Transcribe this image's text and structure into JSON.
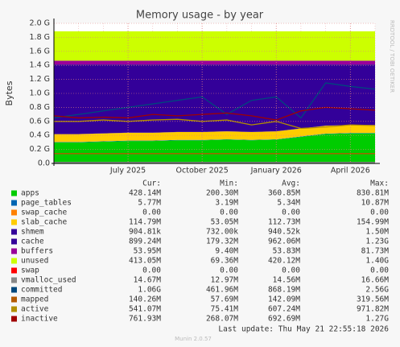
{
  "chart_data": {
    "type": "area",
    "title": "Memory usage - by year",
    "y_label": "Bytes",
    "watermark": "RRDTOOL / TOBI OETIKER",
    "x": [
      "2025-04",
      "2025-05",
      "2025-06",
      "2025-07",
      "2025-08",
      "2025-09",
      "2025-10",
      "2025-11",
      "2025-12",
      "2026-01",
      "2026-02",
      "2026-03",
      "2026-04",
      "2026-05"
    ],
    "xticks": [
      {
        "value": "2025-07",
        "label": "July 2025"
      },
      {
        "value": "2025-10",
        "label": "October 2025"
      },
      {
        "value": "2026-01",
        "label": "January 2026"
      },
      {
        "value": "2026-04",
        "label": "April 2026"
      }
    ],
    "ylim": [
      0,
      2000000000
    ],
    "yticks": [
      {
        "value": 0,
        "label": "0.0"
      },
      {
        "value": 200000000,
        "label": "0.2 G"
      },
      {
        "value": 400000000,
        "label": "0.4 G"
      },
      {
        "value": 600000000,
        "label": "0.6 G"
      },
      {
        "value": 800000000,
        "label": "0.8 G"
      },
      {
        "value": 1000000000,
        "label": "1.0 G"
      },
      {
        "value": 1200000000,
        "label": "1.2 G"
      },
      {
        "value": 1400000000,
        "label": "1.4 G"
      },
      {
        "value": 1600000000,
        "label": "1.6 G"
      },
      {
        "value": 1800000000,
        "label": "1.8 G"
      },
      {
        "value": 2000000000,
        "label": "2.0 G"
      }
    ],
    "grid": true,
    "stat_headers": [
      "Cur:",
      "Min:",
      "Avg:",
      "Max:"
    ],
    "series": [
      {
        "name": "apps",
        "color": "#00cc00",
        "stacked": true,
        "values": [
          300000000,
          300000000,
          310000000,
          320000000,
          320000000,
          330000000,
          330000000,
          340000000,
          330000000,
          340000000,
          380000000,
          420000000,
          430000000,
          430000000
        ],
        "stats": [
          "428.14M",
          "200.30M",
          "360.85M",
          "830.81M"
        ]
      },
      {
        "name": "page_tables",
        "color": "#0066b3",
        "stacked": true,
        "values": [
          5500000,
          5500000,
          5500000,
          5500000,
          5500000,
          5500000,
          5500000,
          5500000,
          5500000,
          5500000,
          5500000,
          5500000,
          5500000,
          5500000
        ],
        "stats": [
          "5.77M",
          "3.19M",
          "5.34M",
          "10.87M"
        ]
      },
      {
        "name": "swap_cache",
        "color": "#ff8000",
        "stacked": true,
        "values": [
          0,
          0,
          0,
          0,
          0,
          0,
          0,
          0,
          0,
          0,
          0,
          0,
          0,
          0
        ],
        "stats": [
          "0.00",
          "0.00",
          "0.00",
          "0.00"
        ]
      },
      {
        "name": "slab_cache",
        "color": "#ffcc00",
        "stacked": true,
        "values": [
          113000000,
          113000000,
          113000000,
          113000000,
          113000000,
          113000000,
          113000000,
          113000000,
          113000000,
          113000000,
          113000000,
          113000000,
          113000000,
          113000000
        ],
        "stats": [
          "114.79M",
          "53.05M",
          "112.73M",
          "154.99M"
        ]
      },
      {
        "name": "shmem",
        "color": "#330099",
        "stacked": true,
        "values": [
          900000,
          900000,
          900000,
          900000,
          900000,
          900000,
          900000,
          900000,
          900000,
          900000,
          900000,
          900000,
          900000,
          900000
        ],
        "stats": [
          "904.81k",
          "732.00k",
          "940.52k",
          "1.50M"
        ]
      },
      {
        "name": "cache",
        "color": "#330099",
        "stacked": true,
        "values": [
          993000000,
          993000000,
          983000000,
          973000000,
          973000000,
          963000000,
          963000000,
          953000000,
          963000000,
          953000000,
          913000000,
          873000000,
          863000000,
          863000000
        ],
        "stats": [
          "899.24M",
          "179.32M",
          "962.06M",
          "1.23G"
        ]
      },
      {
        "name": "buffers",
        "color": "#990099",
        "stacked": true,
        "values": [
          54000000,
          54000000,
          54000000,
          54000000,
          54000000,
          54000000,
          54000000,
          54000000,
          54000000,
          54000000,
          54000000,
          54000000,
          54000000,
          54000000
        ],
        "stats": [
          "53.95M",
          "9.40M",
          "53.83M",
          "81.73M"
        ]
      },
      {
        "name": "unused",
        "color": "#ccff00",
        "stacked": true,
        "values": [
          420000000,
          420000000,
          420000000,
          420000000,
          420000000,
          420000000,
          420000000,
          420000000,
          420000000,
          420000000,
          420000000,
          420000000,
          420000000,
          420000000
        ],
        "stats": [
          "413.05M",
          "69.36M",
          "420.12M",
          "1.40G"
        ]
      },
      {
        "name": "swap",
        "color": "#ff0000",
        "stacked": true,
        "values": [
          0,
          0,
          0,
          0,
          0,
          0,
          0,
          0,
          0,
          0,
          0,
          0,
          0,
          0
        ],
        "stats": [
          "0.00",
          "0.00",
          "0.00",
          "0.00"
        ]
      },
      {
        "name": "vmalloc_used",
        "color": "#888888",
        "stacked": false,
        "values": [
          15000000,
          15000000,
          15000000,
          15000000,
          15000000,
          15000000,
          15000000,
          15000000,
          15000000,
          15000000,
          15000000,
          15000000,
          15000000,
          15000000
        ],
        "stats": [
          "14.67M",
          "12.97M",
          "14.56M",
          "16.66M"
        ]
      },
      {
        "name": "committed",
        "color": "#00487d",
        "stacked": false,
        "values": [
          650000000,
          700000000,
          750000000,
          800000000,
          850000000,
          900000000,
          950000000,
          700000000,
          900000000,
          950000000,
          650000000,
          1150000000,
          1100000000,
          1060000000
        ],
        "stats": [
          "1.06G",
          "461.96M",
          "868.19M",
          "2.56G"
        ]
      },
      {
        "name": "mapped",
        "color": "#b35a00",
        "stacked": false,
        "values": [
          140000000,
          140000000,
          140000000,
          140000000,
          140000000,
          140000000,
          140000000,
          140000000,
          140000000,
          140000000,
          140000000,
          140000000,
          140000000,
          140000000
        ],
        "stats": [
          "140.26M",
          "57.69M",
          "142.09M",
          "319.56M"
        ]
      },
      {
        "name": "active",
        "color": "#b38f00",
        "stacked": false,
        "values": [
          600000000,
          600000000,
          620000000,
          600000000,
          620000000,
          630000000,
          600000000,
          620000000,
          550000000,
          600000000,
          500000000,
          520000000,
          550000000,
          540000000
        ],
        "stats": [
          "541.07M",
          "75.41M",
          "607.24M",
          "971.82M"
        ]
      },
      {
        "name": "inactive",
        "color": "#a00000",
        "stacked": false,
        "values": [
          680000000,
          650000000,
          660000000,
          650000000,
          700000000,
          680000000,
          700000000,
          720000000,
          680000000,
          620000000,
          750000000,
          800000000,
          780000000,
          760000000
        ],
        "stats": [
          "761.93M",
          "268.07M",
          "692.69M",
          "1.27G"
        ]
      }
    ],
    "last_update": "Last update: Thu May 21 22:55:18 2026",
    "footer": "Munin 2.0.57"
  }
}
